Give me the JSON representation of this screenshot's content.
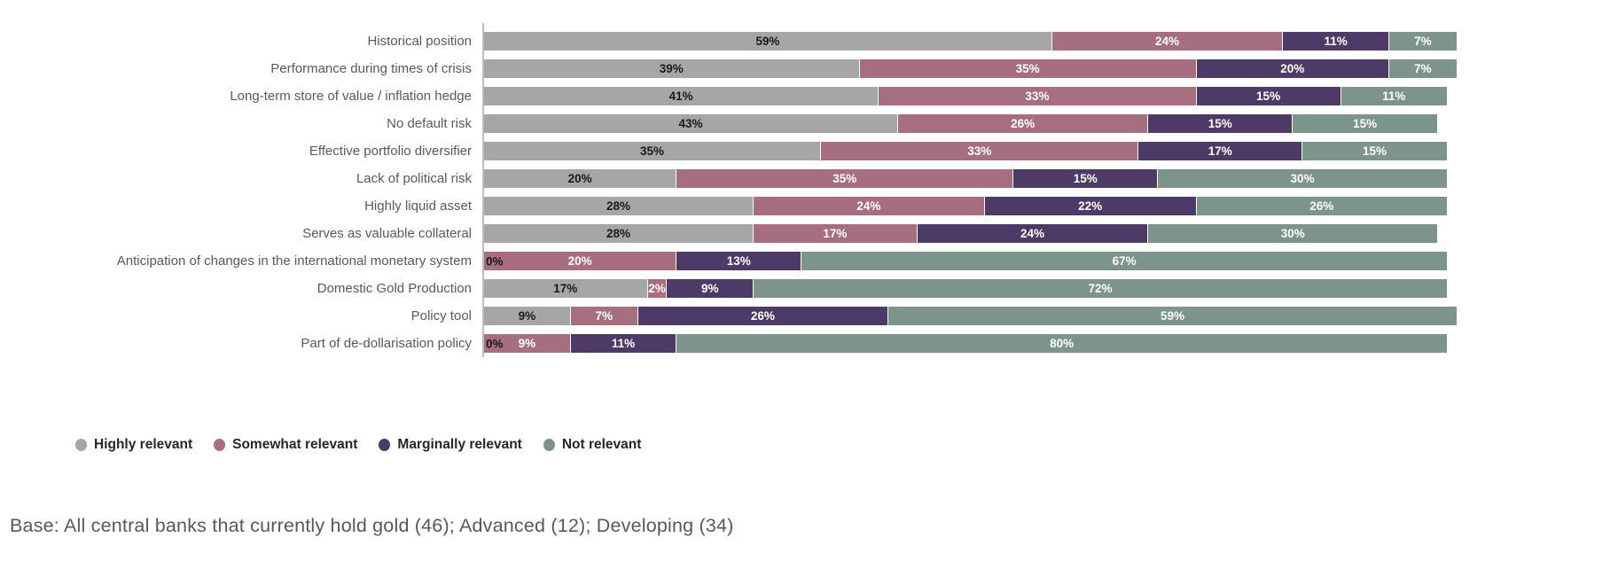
{
  "chart_data": {
    "type": "bar",
    "variant": "horizontal-stacked",
    "unit": "%",
    "grid": false,
    "legend_position": "bottom",
    "xlim": [
      0,
      101
    ],
    "axis_color": "#bdbdbd",
    "categories": [
      "Historical position",
      "Performance during times of crisis",
      "Long-term store of value / inflation hedge",
      "No default risk",
      "Effective portfolio diversifier",
      "Lack of political risk",
      "Highly liquid asset",
      "Serves as valuable collateral",
      "Anticipation of changes in the international monetary system",
      "Domestic Gold Production",
      "Policy tool",
      "Part of de-dollarisation policy"
    ],
    "series": [
      {
        "name": "Highly relevant",
        "color": "#a6a6a6",
        "label_color": "#1a1a1a",
        "values": [
          59,
          39,
          41,
          43,
          35,
          20,
          28,
          28,
          0,
          17,
          9,
          0
        ]
      },
      {
        "name": "Somewhat relevant",
        "color": "#a76e80",
        "label_color": "#ffffff",
        "values": [
          24,
          35,
          33,
          26,
          33,
          35,
          24,
          17,
          20,
          2,
          7,
          9
        ]
      },
      {
        "name": "Marginally relevant",
        "color": "#4e3a67",
        "label_color": "#ffffff",
        "values": [
          11,
          20,
          15,
          15,
          17,
          15,
          22,
          24,
          13,
          9,
          26,
          11
        ]
      },
      {
        "name": "Not relevant",
        "color": "#7c9489",
        "label_color": "#ffffff",
        "values": [
          7,
          7,
          11,
          15,
          15,
          30,
          26,
          30,
          67,
          72,
          59,
          80
        ]
      }
    ]
  },
  "footer": {
    "base_note": "Base: All central banks that currently hold gold (46); Advanced (12); Developing (34)"
  }
}
